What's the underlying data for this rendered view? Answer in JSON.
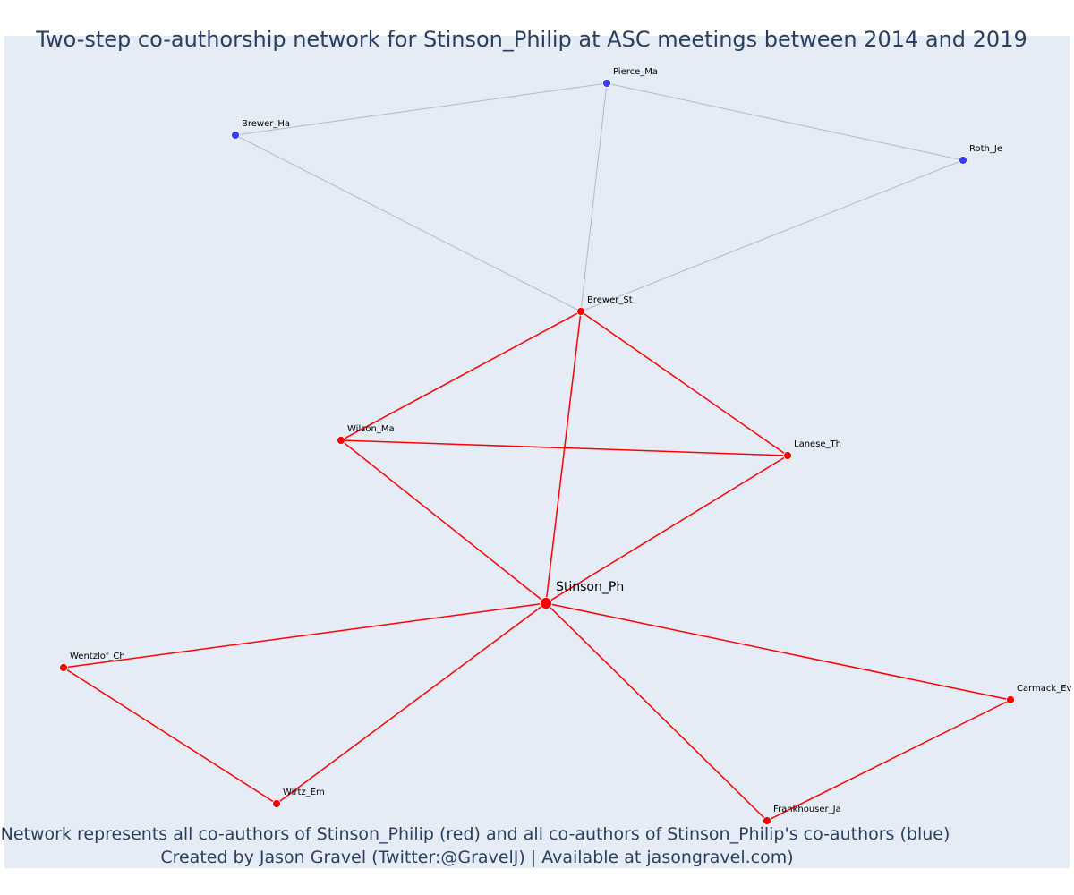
{
  "title": "Two-step co-authorship network for Stinson_Philip at ASC meetings between 2014 and 2019",
  "caption": {
    "line1": "Network represents all co-authors of Stinson_Philip (red) and all co-authors of Stinson_Philip's co-authors (blue)",
    "line2": "Created by Jason Gravel (Twitter:@GravelJ) | Available at jasongravel.com)"
  },
  "colors": {
    "background": "#e5ecf6",
    "red": "#ff0000",
    "blue": "#3d3df2",
    "gray_edge": "#b4b8c8",
    "text": "#2a3f5f"
  },
  "nodes": [
    {
      "id": "Stinson_Ph",
      "label": "Stinson_Ph",
      "group": "center"
    },
    {
      "id": "Brewer_St",
      "label": "Brewer_St",
      "group": "red"
    },
    {
      "id": "Wilson_Ma",
      "label": "Wilson_Ma",
      "group": "red"
    },
    {
      "id": "Lanese_Th",
      "label": "Lanese_Th",
      "group": "red"
    },
    {
      "id": "Wentzlof_Ch",
      "label": "Wentzlof_Ch",
      "group": "red"
    },
    {
      "id": "Wirtz_Em",
      "label": "Wirtz_Em",
      "group": "red"
    },
    {
      "id": "Carmack_Ev",
      "label": "Carmack_Ev",
      "group": "red"
    },
    {
      "id": "Frankhouser_Ja",
      "label": "Frankhouser_Ja",
      "group": "red"
    },
    {
      "id": "Pierce_Ma",
      "label": "Pierce_Ma",
      "group": "blue"
    },
    {
      "id": "Brewer_Ha",
      "label": "Brewer_Ha",
      "group": "blue"
    },
    {
      "id": "Roth_Je",
      "label": "Roth_Je",
      "group": "blue"
    }
  ],
  "edges": [
    {
      "source": "Pierce_Ma",
      "target": "Brewer_Ha",
      "type": "blue"
    },
    {
      "source": "Pierce_Ma",
      "target": "Roth_Je",
      "type": "blue"
    },
    {
      "source": "Pierce_Ma",
      "target": "Brewer_St",
      "type": "blue"
    },
    {
      "source": "Brewer_Ha",
      "target": "Brewer_St",
      "type": "blue"
    },
    {
      "source": "Roth_Je",
      "target": "Brewer_St",
      "type": "blue"
    },
    {
      "source": "Brewer_St",
      "target": "Wilson_Ma",
      "type": "red"
    },
    {
      "source": "Brewer_St",
      "target": "Lanese_Th",
      "type": "red"
    },
    {
      "source": "Brewer_St",
      "target": "Stinson_Ph",
      "type": "red"
    },
    {
      "source": "Wilson_Ma",
      "target": "Lanese_Th",
      "type": "red"
    },
    {
      "source": "Wilson_Ma",
      "target": "Stinson_Ph",
      "type": "red"
    },
    {
      "source": "Lanese_Th",
      "target": "Stinson_Ph",
      "type": "red"
    },
    {
      "source": "Stinson_Ph",
      "target": "Wentzlof_Ch",
      "type": "red"
    },
    {
      "source": "Stinson_Ph",
      "target": "Wirtz_Em",
      "type": "red"
    },
    {
      "source": "Stinson_Ph",
      "target": "Carmack_Ev",
      "type": "red"
    },
    {
      "source": "Stinson_Ph",
      "target": "Frankhouser_Ja",
      "type": "red"
    },
    {
      "source": "Wentzlof_Ch",
      "target": "Wirtz_Em",
      "type": "red"
    },
    {
      "source": "Carmack_Ev",
      "target": "Frankhouser_Ja",
      "type": "red"
    }
  ]
}
